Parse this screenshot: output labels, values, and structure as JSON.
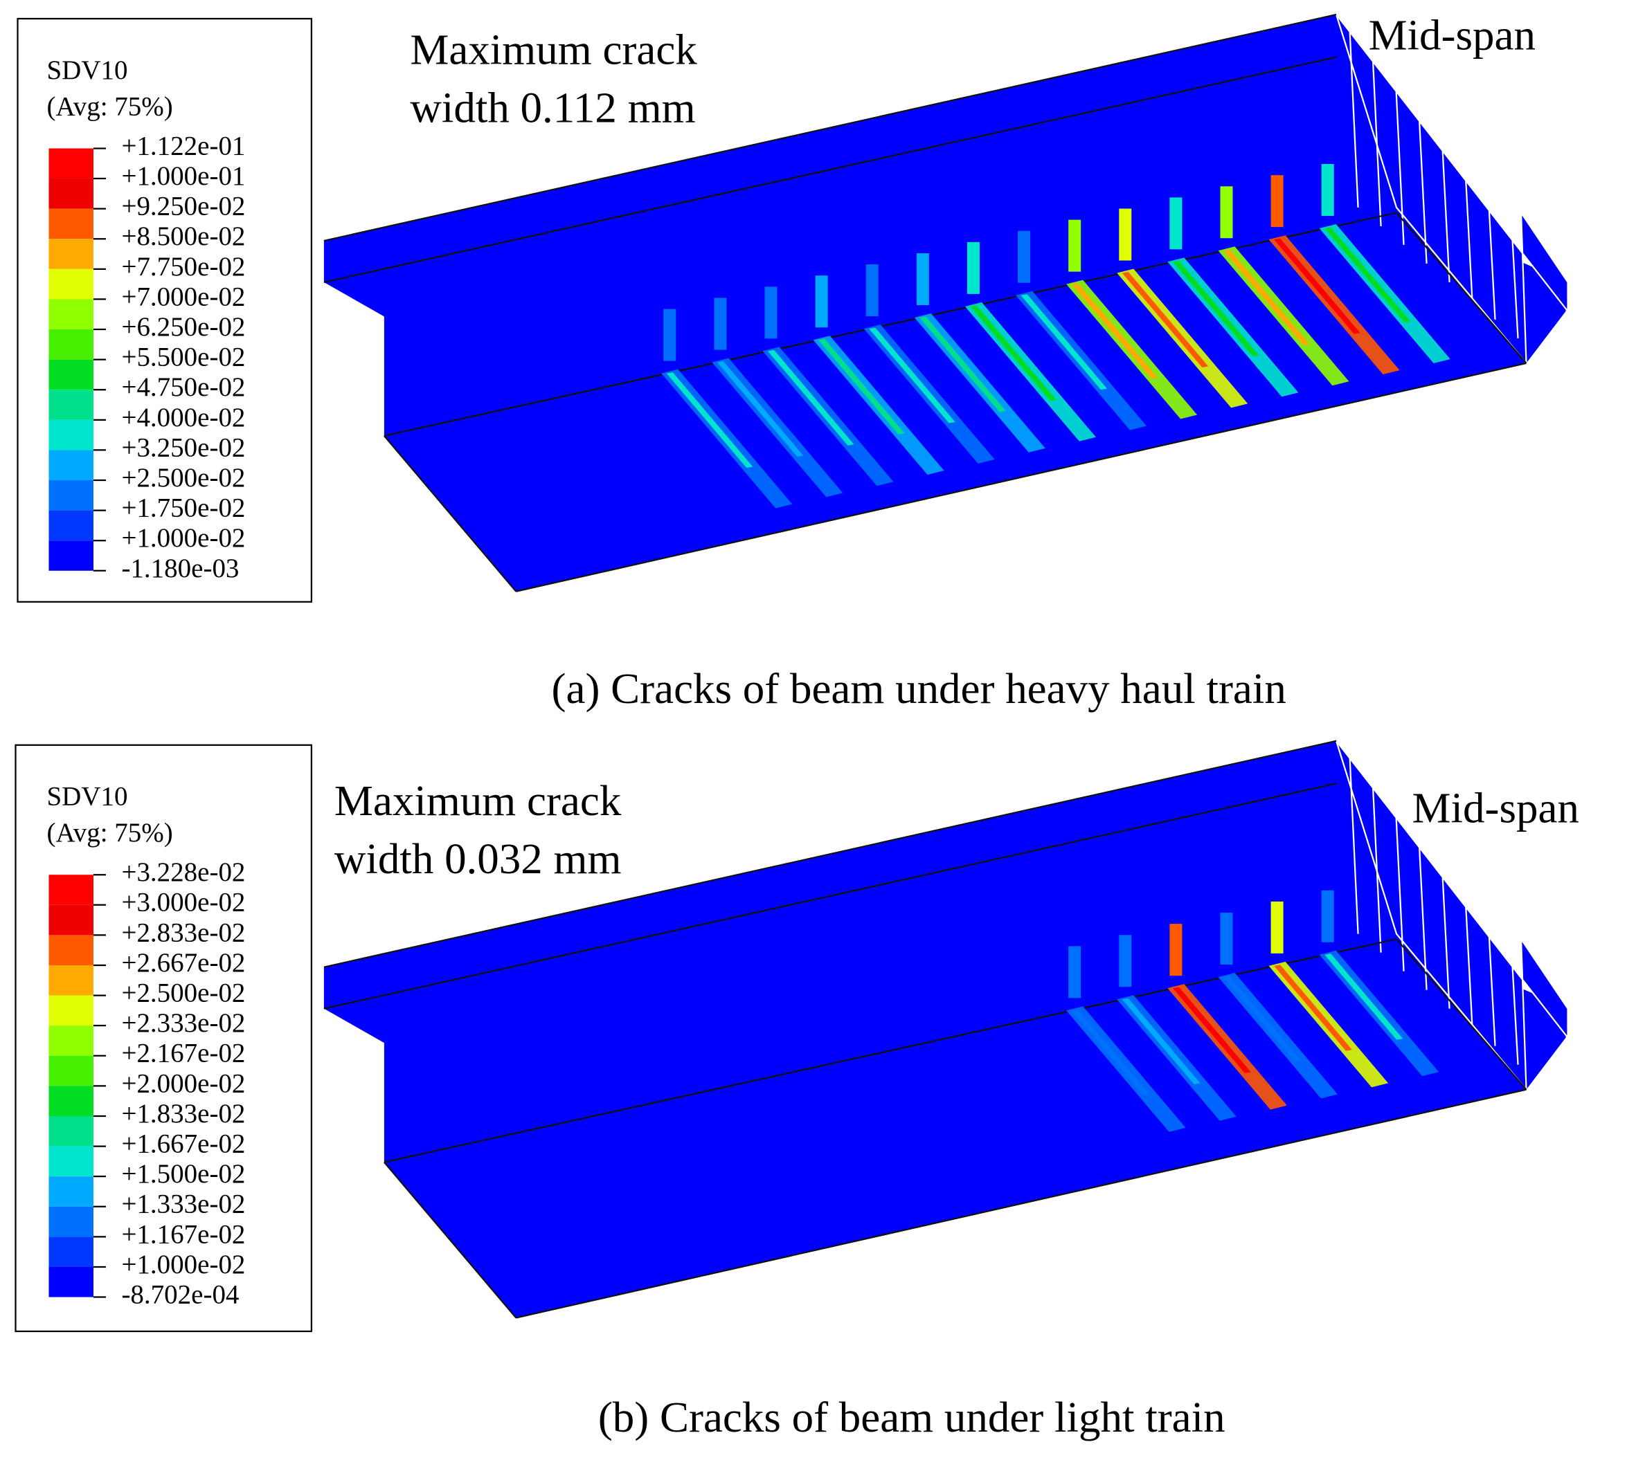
{
  "panels": [
    {
      "legend": {
        "title": "SDV10",
        "subtitle": "(Avg: 75%)",
        "labels": [
          "+1.122e-01",
          "+1.000e-01",
          "+9.250e-02",
          "+8.500e-02",
          "+7.750e-02",
          "+7.000e-02",
          "+6.250e-02",
          "+5.500e-02",
          "+4.750e-02",
          "+4.000e-02",
          "+3.250e-02",
          "+2.500e-02",
          "+1.750e-02",
          "+1.000e-02",
          "-1.180e-03"
        ]
      },
      "annotation": [
        "Maximum crack",
        "width 0.112 mm"
      ],
      "section_label": "Mid-span",
      "caption": "(a) Cracks of beam under heavy haul train"
    },
    {
      "legend": {
        "title": "SDV10",
        "subtitle": "(Avg: 75%)",
        "labels": [
          "+3.228e-02",
          "+3.000e-02",
          "+2.833e-02",
          "+2.667e-02",
          "+2.500e-02",
          "+2.333e-02",
          "+2.167e-02",
          "+2.000e-02",
          "+1.833e-02",
          "+1.667e-02",
          "+1.500e-02",
          "+1.333e-02",
          "+1.167e-02",
          "+1.000e-02",
          "-8.702e-04"
        ]
      },
      "annotation": [
        "Maximum crack",
        "width 0.032 mm"
      ],
      "section_label": "Mid-span",
      "caption": "(b) Cracks of beam under light train"
    }
  ]
}
